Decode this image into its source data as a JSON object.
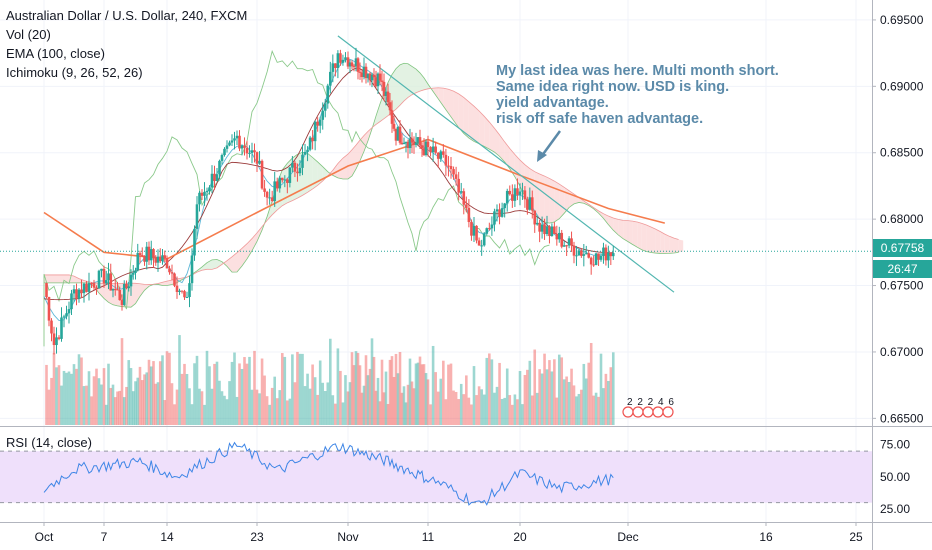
{
  "legend": {
    "title": "Australian Dollar / U.S. Dollar, 240, FXCM",
    "vol": "Vol (20)",
    "ema": "EMA (100, close)",
    "ichimoku": "Ichimoku (9, 26, 52, 26)",
    "rsi": "RSI (14, close)"
  },
  "annotation": {
    "lines": [
      "My last idea was here.  Multi month short.",
      "Same idea right now.  USD is king.",
      "yield advantage.",
      "risk off safe haven advantage."
    ]
  },
  "price_label": {
    "value": "0.67758",
    "countdown": "26:47"
  },
  "events_label": "2 2 2  4  6",
  "colors": {
    "up": "#26a69a",
    "down": "#ef5350",
    "ema": "#f57c4d",
    "annotation": "#5b8aa9",
    "trendline": "#52b6b0",
    "rsi": "#3f86e6",
    "rsi_band": "#efe0fb",
    "cloud_red": "#fbd5d5",
    "cloud_green": "#d9eed9"
  },
  "chart_data": [
    {
      "type": "candlestick",
      "title": "Australian Dollar / U.S. Dollar, 240, FXCM",
      "y_axis": {
        "ticks": [
          "0.69500",
          "0.69000",
          "0.68500",
          "0.68000",
          "0.67500",
          "0.67000",
          "0.66500"
        ],
        "range": [
          0.6645,
          0.6965
        ]
      },
      "x_axis": {
        "ticks": [
          "Oct",
          "7",
          "14",
          "23",
          "Nov",
          "11",
          "20",
          "Dec",
          "16",
          "25"
        ]
      },
      "last_price": 0.67758,
      "close_path": [
        {
          "x": "Oct 1",
          "y": 0.6752
        },
        {
          "x": "Oct 2",
          "y": 0.6706
        },
        {
          "x": "Oct 4",
          "y": 0.6745
        },
        {
          "x": "Oct 7",
          "y": 0.6757
        },
        {
          "x": "Oct 9",
          "y": 0.674
        },
        {
          "x": "Oct 11",
          "y": 0.6775
        },
        {
          "x": "Oct 14",
          "y": 0.6768
        },
        {
          "x": "Oct 16",
          "y": 0.6735
        },
        {
          "x": "Oct 17",
          "y": 0.6812
        },
        {
          "x": "Oct 21",
          "y": 0.6862
        },
        {
          "x": "Oct 23",
          "y": 0.6845
        },
        {
          "x": "Oct 24",
          "y": 0.6815
        },
        {
          "x": "Oct 28",
          "y": 0.685
        },
        {
          "x": "Oct 31",
          "y": 0.6925
        },
        {
          "x": "Nov 5",
          "y": 0.6905
        },
        {
          "x": "Nov 7",
          "y": 0.6865
        },
        {
          "x": "Nov 11",
          "y": 0.6852
        },
        {
          "x": "Nov 13",
          "y": 0.684
        },
        {
          "x": "Nov 16",
          "y": 0.6778
        },
        {
          "x": "Nov 18",
          "y": 0.6808
        },
        {
          "x": "Nov 20",
          "y": 0.6825
        },
        {
          "x": "Nov 22",
          "y": 0.6795
        },
        {
          "x": "Nov 25",
          "y": 0.678
        },
        {
          "x": "Nov 28",
          "y": 0.677
        },
        {
          "x": "Nov 29",
          "y": 0.6776
        }
      ],
      "ema_100": [
        {
          "x": "Oct 1",
          "y": 0.6805
        },
        {
          "x": "Oct 7",
          "y": 0.6775
        },
        {
          "x": "Oct 14",
          "y": 0.677
        },
        {
          "x": "Oct 23",
          "y": 0.6805
        },
        {
          "x": "Nov 1",
          "y": 0.684
        },
        {
          "x": "Nov 11",
          "y": 0.686
        },
        {
          "x": "Nov 20",
          "y": 0.6833
        },
        {
          "x": "Nov 29",
          "y": 0.6808
        },
        {
          "x": "Dec 5",
          "y": 0.6797
        }
      ],
      "trendline": [
        {
          "x": "Oct 31",
          "y": 0.6938
        },
        {
          "x": "Dec 6",
          "y": 0.6745
        }
      ]
    },
    {
      "type": "line",
      "title": "RSI (14, close)",
      "y_axis": {
        "ticks": [
          "75.00",
          "50.00",
          "25.00"
        ],
        "range": [
          15,
          88
        ]
      },
      "band": [
        30,
        70
      ],
      "values": [
        {
          "x": "Oct 1",
          "y": 40
        },
        {
          "x": "Oct 4",
          "y": 56
        },
        {
          "x": "Oct 11",
          "y": 62
        },
        {
          "x": "Oct 15",
          "y": 50
        },
        {
          "x": "Oct 21",
          "y": 75
        },
        {
          "x": "Oct 25",
          "y": 55
        },
        {
          "x": "Oct 31",
          "y": 74
        },
        {
          "x": "Nov 6",
          "y": 62
        },
        {
          "x": "Nov 12",
          "y": 46
        },
        {
          "x": "Nov 16",
          "y": 28
        },
        {
          "x": "Nov 20",
          "y": 53
        },
        {
          "x": "Nov 24",
          "y": 41
        },
        {
          "x": "Nov 29",
          "y": 48
        }
      ]
    }
  ]
}
